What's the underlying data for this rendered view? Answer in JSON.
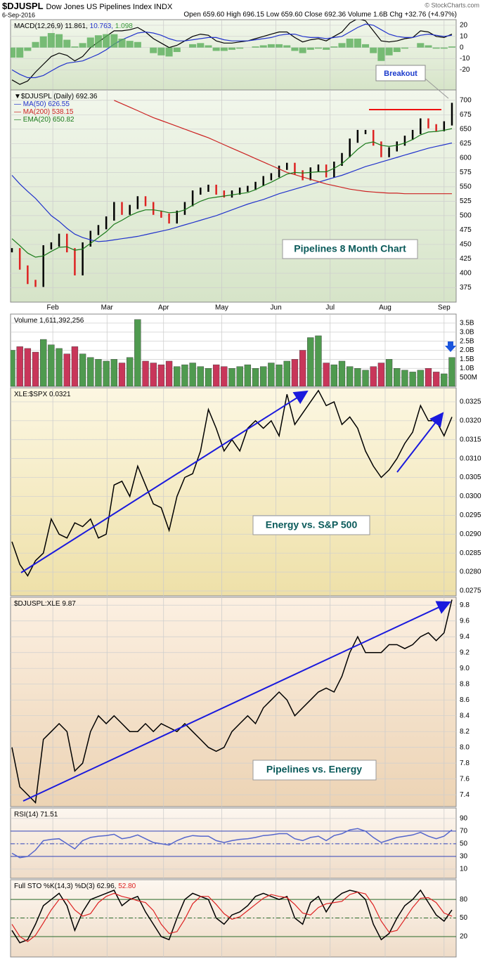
{
  "header": {
    "symbol": "$DJUSPL",
    "name": "Dow Jones US Pipelines Index INDX",
    "date": "6-Sep-2016",
    "source": "© StockCharts.com",
    "quote": "Open 659.60 High 696.15 Low 659.60 Close 692.36 Volume 1.6B Chg +32.76 (+4.97%)"
  },
  "x_axis": {
    "xlim": [
      0,
      56
    ],
    "xticks": [
      {
        "value": 5.2,
        "label": "Feb"
      },
      {
        "value": 12.1,
        "label": "Mar"
      },
      {
        "value": 19.3,
        "label": "Apr"
      },
      {
        "value": 26.7,
        "label": "May"
      },
      {
        "value": 33.6,
        "label": "Jun"
      },
      {
        "value": 40.5,
        "label": "Jul"
      },
      {
        "value": 47.5,
        "label": "Aug"
      },
      {
        "value": 55.0,
        "label": "Sep"
      }
    ]
  },
  "chart_data": [
    {
      "type": "macd",
      "legend": [
        {
          "text": "MACD(12,26,9) 11.861,",
          "color": "#000"
        },
        {
          "text": " 10.763,",
          "color": "#2233cc"
        },
        {
          "text": " 1.098",
          "color": "#3a9a3a"
        }
      ],
      "ylim": [
        -38,
        25
      ],
      "yticks": [
        -20,
        -10,
        0,
        10,
        20
      ],
      "series": [
        {
          "color": "#000000",
          "style": "line",
          "values": [
            -29,
            -33,
            -30,
            -22,
            -15,
            -8,
            -5,
            -7,
            -12,
            -8,
            0,
            5,
            10,
            15,
            15,
            16,
            18,
            14,
            8,
            4,
            0,
            2,
            6,
            10,
            12,
            11,
            6,
            4,
            4,
            5,
            6,
            8,
            10,
            12,
            14,
            14,
            9,
            5,
            7,
            8,
            6,
            10,
            14,
            22,
            26,
            24,
            15,
            6,
            5,
            6,
            8,
            9,
            15,
            14,
            10,
            9,
            12
          ]
        },
        {
          "color": "#2233cc",
          "style": "line",
          "values": [
            -20,
            -24,
            -27,
            -27,
            -25,
            -21,
            -17,
            -14,
            -13,
            -12,
            -9,
            -6,
            -2,
            3,
            7,
            10,
            13,
            14,
            13,
            11,
            8,
            6,
            6,
            7,
            8,
            9,
            9,
            7,
            6,
            6,
            6,
            7,
            8,
            9,
            11,
            12,
            12,
            10,
            9,
            9,
            8,
            9,
            10,
            14,
            18,
            21,
            20,
            16,
            12,
            10,
            9,
            9,
            11,
            12,
            11,
            10,
            11
          ]
        },
        {
          "color": "#5aae5a",
          "style": "histogram",
          "values": [
            -9,
            -9,
            -3,
            5,
            10,
            13,
            12,
            7,
            1,
            4,
            9,
            11,
            12,
            12,
            8,
            6,
            5,
            0,
            -5,
            -7,
            -8,
            -4,
            0,
            3,
            4,
            2,
            -3,
            -3,
            -2,
            -1,
            0,
            1,
            2,
            3,
            3,
            2,
            -3,
            -5,
            -2,
            -1,
            -2,
            1,
            4,
            8,
            8,
            3,
            -5,
            -12,
            -7,
            -4,
            -1,
            0,
            4,
            2,
            -1,
            -1,
            1
          ]
        }
      ]
    },
    {
      "type": "price",
      "legend_stacked": true,
      "legend": [
        {
          "text": "▼$DJUSPL (Daily) 692.36",
          "color": "#000"
        },
        {
          "text": "— MA(50) 626.55",
          "color": "#2233cc"
        },
        {
          "text": "— MA(200) 538.15",
          "color": "#cc2222"
        },
        {
          "text": "— EMA(20) 650.82",
          "color": "#1a7a1a"
        }
      ],
      "annotation": "Pipelines 8 Month Chart",
      "callout": "Breakout",
      "ylim": [
        350,
        718
      ],
      "yticks": [
        375,
        400,
        425,
        450,
        475,
        500,
        525,
        550,
        575,
        600,
        625,
        650,
        675,
        700
      ],
      "series": [
        {
          "color": "#000000",
          "down_color": "#dd2222",
          "style": "bars",
          "values": [
            440,
            410,
            385,
            380,
            445,
            450,
            465,
            440,
            400,
            450,
            470,
            480,
            495,
            520,
            505,
            515,
            530,
            520,
            505,
            500,
            490,
            505,
            520,
            540,
            545,
            550,
            540,
            535,
            540,
            545,
            548,
            555,
            565,
            570,
            583,
            588,
            575,
            565,
            580,
            585,
            570,
            590,
            605,
            630,
            645,
            645,
            625,
            605,
            615,
            625,
            635,
            645,
            665,
            655,
            650,
            660,
            692
          ]
        },
        {
          "color": "#2233cc",
          "style": "line",
          "values": [
            570,
            555,
            542,
            530,
            515,
            500,
            490,
            478,
            468,
            462,
            458,
            455,
            456,
            458,
            460,
            462,
            464,
            467,
            470,
            473,
            476,
            480,
            484,
            488,
            492,
            496,
            500,
            505,
            510,
            515,
            520,
            524,
            528,
            533,
            538,
            542,
            546,
            550,
            554,
            558,
            562,
            566,
            570,
            575,
            580,
            585,
            589,
            593,
            597,
            601,
            605,
            609,
            613,
            617,
            620,
            623,
            626
          ]
        },
        {
          "color": "#cc2222",
          "style": "line",
          "values": [
            null,
            null,
            null,
            null,
            null,
            null,
            null,
            null,
            null,
            null,
            null,
            null,
            null,
            700,
            694,
            688,
            682,
            676,
            670,
            665,
            660,
            655,
            650,
            645,
            640,
            635,
            629,
            623,
            617,
            611,
            605,
            599,
            593,
            587,
            581,
            575,
            571,
            567,
            563,
            559,
            555,
            552,
            549,
            546,
            544,
            542,
            541,
            540,
            539,
            539,
            538,
            538,
            538,
            538,
            538,
            538,
            538
          ]
        },
        {
          "color": "#1a7a1a",
          "style": "line",
          "values": [
            460,
            448,
            435,
            428,
            430,
            438,
            445,
            446,
            440,
            442,
            452,
            462,
            472,
            485,
            492,
            500,
            506,
            510,
            510,
            508,
            505,
            506,
            510,
            518,
            525,
            530,
            532,
            534,
            536,
            538,
            540,
            545,
            552,
            558,
            565,
            572,
            575,
            574,
            575,
            576,
            576,
            582,
            590,
            602,
            615,
            625,
            628,
            622,
            620,
            622,
            626,
            632,
            640,
            645,
            646,
            648,
            651
          ]
        }
      ]
    },
    {
      "type": "volume",
      "legend": [
        {
          "text": "Volume 1,611,392,256",
          "color": "#000"
        }
      ],
      "ylim": [
        0,
        4.0
      ],
      "yticks": [
        {
          "value": 0.5,
          "label": "500M"
        },
        {
          "value": 1.0,
          "label": "1.0B"
        },
        {
          "value": 1.5,
          "label": "1.5B"
        },
        {
          "value": 2.0,
          "label": "2.0B"
        },
        {
          "value": 2.5,
          "label": "2.5B"
        },
        {
          "value": 3.0,
          "label": "3.0B"
        },
        {
          "value": 3.5,
          "label": "3.5B"
        }
      ],
      "up_color": "#4f9a4f",
      "down_color": "#c8365a",
      "series": [
        {
          "style": "volume",
          "values": [
            2.0,
            2.2,
            2.1,
            1.9,
            2.6,
            2.3,
            2.1,
            1.8,
            2.2,
            1.8,
            1.6,
            1.5,
            1.4,
            1.5,
            1.3,
            1.6,
            3.7,
            1.4,
            1.3,
            1.2,
            1.4,
            1.1,
            1.2,
            1.3,
            1.1,
            1.0,
            1.2,
            1.1,
            1.0,
            1.1,
            1.2,
            1.0,
            1.1,
            1.3,
            1.2,
            1.4,
            1.5,
            2.0,
            2.7,
            2.8,
            1.3,
            1.2,
            1.4,
            1.1,
            1.0,
            0.9,
            1.1,
            1.3,
            1.5,
            1.0,
            0.9,
            0.8,
            0.9,
            1.0,
            0.8,
            0.7,
            1.6
          ]
        }
      ]
    },
    {
      "type": "line",
      "legend": [
        {
          "text": "XLE:$SPX 0.0321",
          "color": "#000"
        }
      ],
      "annotation": "Energy vs. S&P 500",
      "ylim": [
        0.02737,
        0.03287
      ],
      "yticks": [
        0.0275,
        {
          "value": 0.028,
          "label": "0.0280"
        },
        0.0285,
        {
          "value": 0.029,
          "label": "0.0290"
        },
        0.0295,
        {
          "value": 0.03,
          "label": "0.0300"
        },
        0.0305,
        {
          "value": 0.031,
          "label": "0.0310"
        },
        0.0315,
        {
          "value": 0.032,
          "label": "0.0320"
        },
        0.0325
      ],
      "series": [
        {
          "color": "#000000",
          "style": "line",
          "values": [
            0.0288,
            0.0282,
            0.0279,
            0.0283,
            0.0285,
            0.0294,
            0.029,
            0.0289,
            0.0293,
            0.0292,
            0.0294,
            0.0289,
            0.029,
            0.0303,
            0.0304,
            0.03,
            0.0308,
            0.0303,
            0.0298,
            0.0297,
            0.0291,
            0.03,
            0.0305,
            0.0306,
            0.0312,
            0.0323,
            0.0318,
            0.0312,
            0.0315,
            0.0312,
            0.0318,
            0.032,
            0.0318,
            0.032,
            0.0316,
            0.0327,
            0.0319,
            0.0322,
            0.0325,
            0.0328,
            0.0324,
            0.0325,
            0.0319,
            0.0321,
            0.0318,
            0.0312,
            0.0308,
            0.0305,
            0.0307,
            0.031,
            0.0314,
            0.0317,
            0.0324,
            0.032,
            0.032,
            0.0316,
            0.0321
          ]
        }
      ]
    },
    {
      "type": "line",
      "legend": [
        {
          "text": "$DJUSPL:XLE 9.87",
          "color": "#000"
        }
      ],
      "annotation": "Pipelines vs. Energy",
      "ylim": [
        7.25,
        9.9
      ],
      "yticks": [
        7.4,
        7.6,
        7.8,
        {
          "value": 8.0,
          "label": "8.0"
        },
        8.2,
        8.4,
        8.6,
        8.8,
        {
          "value": 9.0,
          "label": "9.0"
        },
        9.2,
        9.4,
        9.6,
        9.8
      ],
      "series": [
        {
          "color": "#000000",
          "style": "line",
          "values": [
            8.0,
            7.5,
            7.4,
            7.3,
            8.1,
            8.2,
            8.3,
            8.2,
            7.7,
            7.8,
            8.2,
            8.4,
            8.3,
            8.4,
            8.3,
            8.2,
            8.2,
            8.3,
            8.2,
            8.3,
            8.25,
            8.2,
            8.3,
            8.2,
            8.1,
            8.0,
            7.95,
            8.0,
            8.2,
            8.3,
            8.4,
            8.3,
            8.5,
            8.6,
            8.7,
            8.6,
            8.4,
            8.5,
            8.6,
            8.7,
            8.75,
            8.7,
            8.9,
            9.2,
            9.4,
            9.2,
            9.2,
            9.2,
            9.3,
            9.3,
            9.25,
            9.3,
            9.4,
            9.45,
            9.35,
            9.45,
            9.87
          ]
        }
      ]
    },
    {
      "type": "oscillator",
      "legend": [
        {
          "text": "RSI(14) 71.51",
          "color": "#000"
        }
      ],
      "ylim": [
        -4.5,
        106.5
      ],
      "yticks": [
        10,
        30,
        50,
        70,
        90
      ],
      "levels": [
        30,
        50,
        70
      ],
      "level_color": "#3344bb",
      "series": [
        {
          "color": "#5566cc",
          "style": "line",
          "values": [
            35,
            28,
            30,
            40,
            55,
            57,
            58,
            50,
            42,
            55,
            60,
            62,
            63,
            65,
            58,
            60,
            64,
            58,
            52,
            50,
            48,
            55,
            60,
            63,
            62,
            62,
            55,
            52,
            55,
            57,
            58,
            60,
            63,
            64,
            66,
            66,
            58,
            55,
            60,
            62,
            55,
            63,
            66,
            72,
            74,
            70,
            60,
            52,
            56,
            60,
            62,
            64,
            68,
            62,
            58,
            62,
            72
          ]
        }
      ]
    },
    {
      "type": "oscillator",
      "legend": [
        {
          "text": "Full STO %K(14,3) %D(3) 62.96,",
          "color": "#000"
        },
        {
          "text": " 52.80",
          "color": "#dd2222"
        }
      ],
      "ylim": [
        -13,
        112
      ],
      "yticks": [
        20,
        50,
        80
      ],
      "levels": [
        20,
        50,
        80
      ],
      "level_color": "#2a6a2a",
      "series": [
        {
          "color": "#000000",
          "style": "line",
          "values": [
            30,
            10,
            15,
            40,
            70,
            80,
            90,
            70,
            30,
            60,
            80,
            85,
            90,
            95,
            70,
            80,
            85,
            60,
            40,
            20,
            15,
            50,
            80,
            90,
            85,
            80,
            50,
            40,
            55,
            60,
            70,
            85,
            90,
            85,
            80,
            85,
            50,
            40,
            75,
            85,
            60,
            80,
            90,
            95,
            92,
            80,
            40,
            15,
            25,
            50,
            70,
            80,
            95,
            75,
            55,
            45,
            63
          ]
        },
        {
          "color": "#dd2222",
          "style": "line",
          "values": [
            40,
            20,
            12,
            22,
            42,
            63,
            80,
            80,
            63,
            53,
            57,
            75,
            85,
            90,
            85,
            82,
            78,
            75,
            62,
            40,
            25,
            28,
            48,
            73,
            85,
            85,
            72,
            57,
            48,
            52,
            62,
            72,
            82,
            88,
            85,
            83,
            72,
            58,
            55,
            67,
            73,
            75,
            77,
            88,
            92,
            89,
            71,
            45,
            27,
            30,
            48,
            67,
            82,
            83,
            75,
            58,
            53
          ]
        }
      ]
    }
  ]
}
